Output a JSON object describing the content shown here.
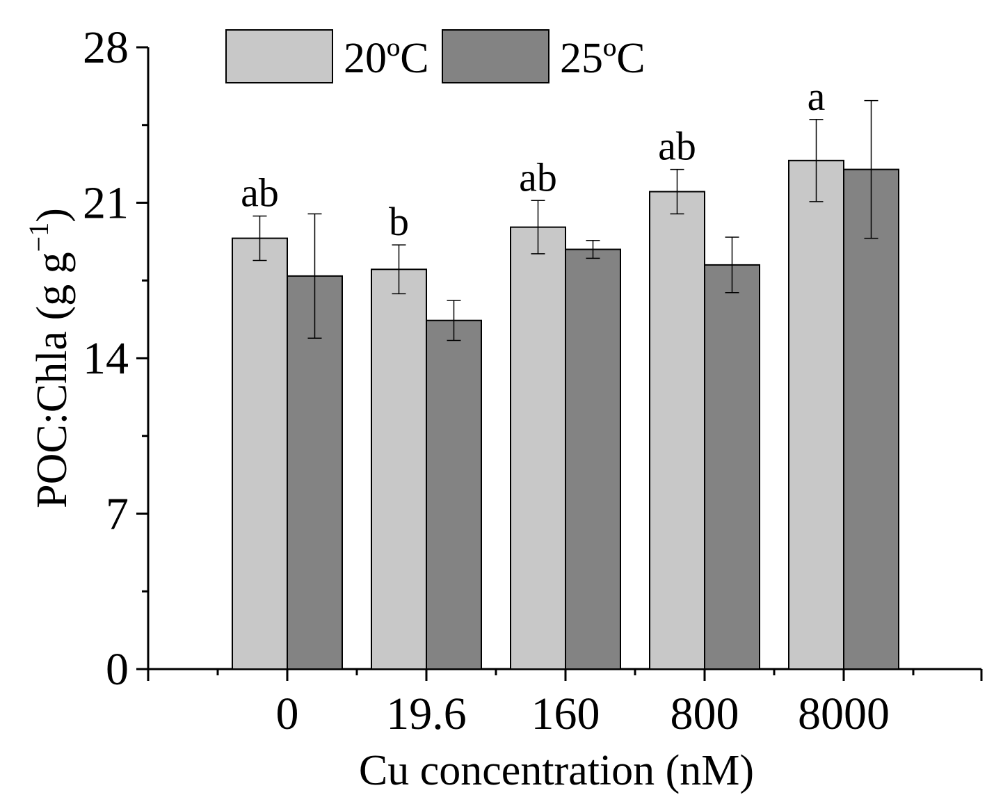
{
  "chart_data": {
    "type": "bar",
    "title": "",
    "xlabel": "Cu concentration (nM)",
    "ylabel": "POC:Chla (g g",
    "ylabel_superscript": "−1",
    "ylabel_close": ")",
    "ylim": [
      0,
      28
    ],
    "yticks": [
      "0",
      "7",
      "14",
      "21",
      "28"
    ],
    "categories": [
      "0",
      "19.6",
      "160",
      "800",
      "8000"
    ],
    "legend_position": "top-left",
    "series": [
      {
        "name": "20ºC",
        "color": "#c8c8c8",
        "values": [
          19.4,
          18.0,
          19.9,
          21.5,
          22.9
        ],
        "errors": [
          1.0,
          1.1,
          1.2,
          1.0,
          1.85
        ]
      },
      {
        "name": "25ºC",
        "color": "#838383",
        "values": [
          17.7,
          15.7,
          18.9,
          18.2,
          22.5
        ],
        "errors": [
          2.8,
          0.9,
          0.4,
          1.25,
          3.1
        ]
      }
    ],
    "significance_letters": [
      "ab",
      "b",
      "ab",
      "ab",
      "a"
    ]
  }
}
